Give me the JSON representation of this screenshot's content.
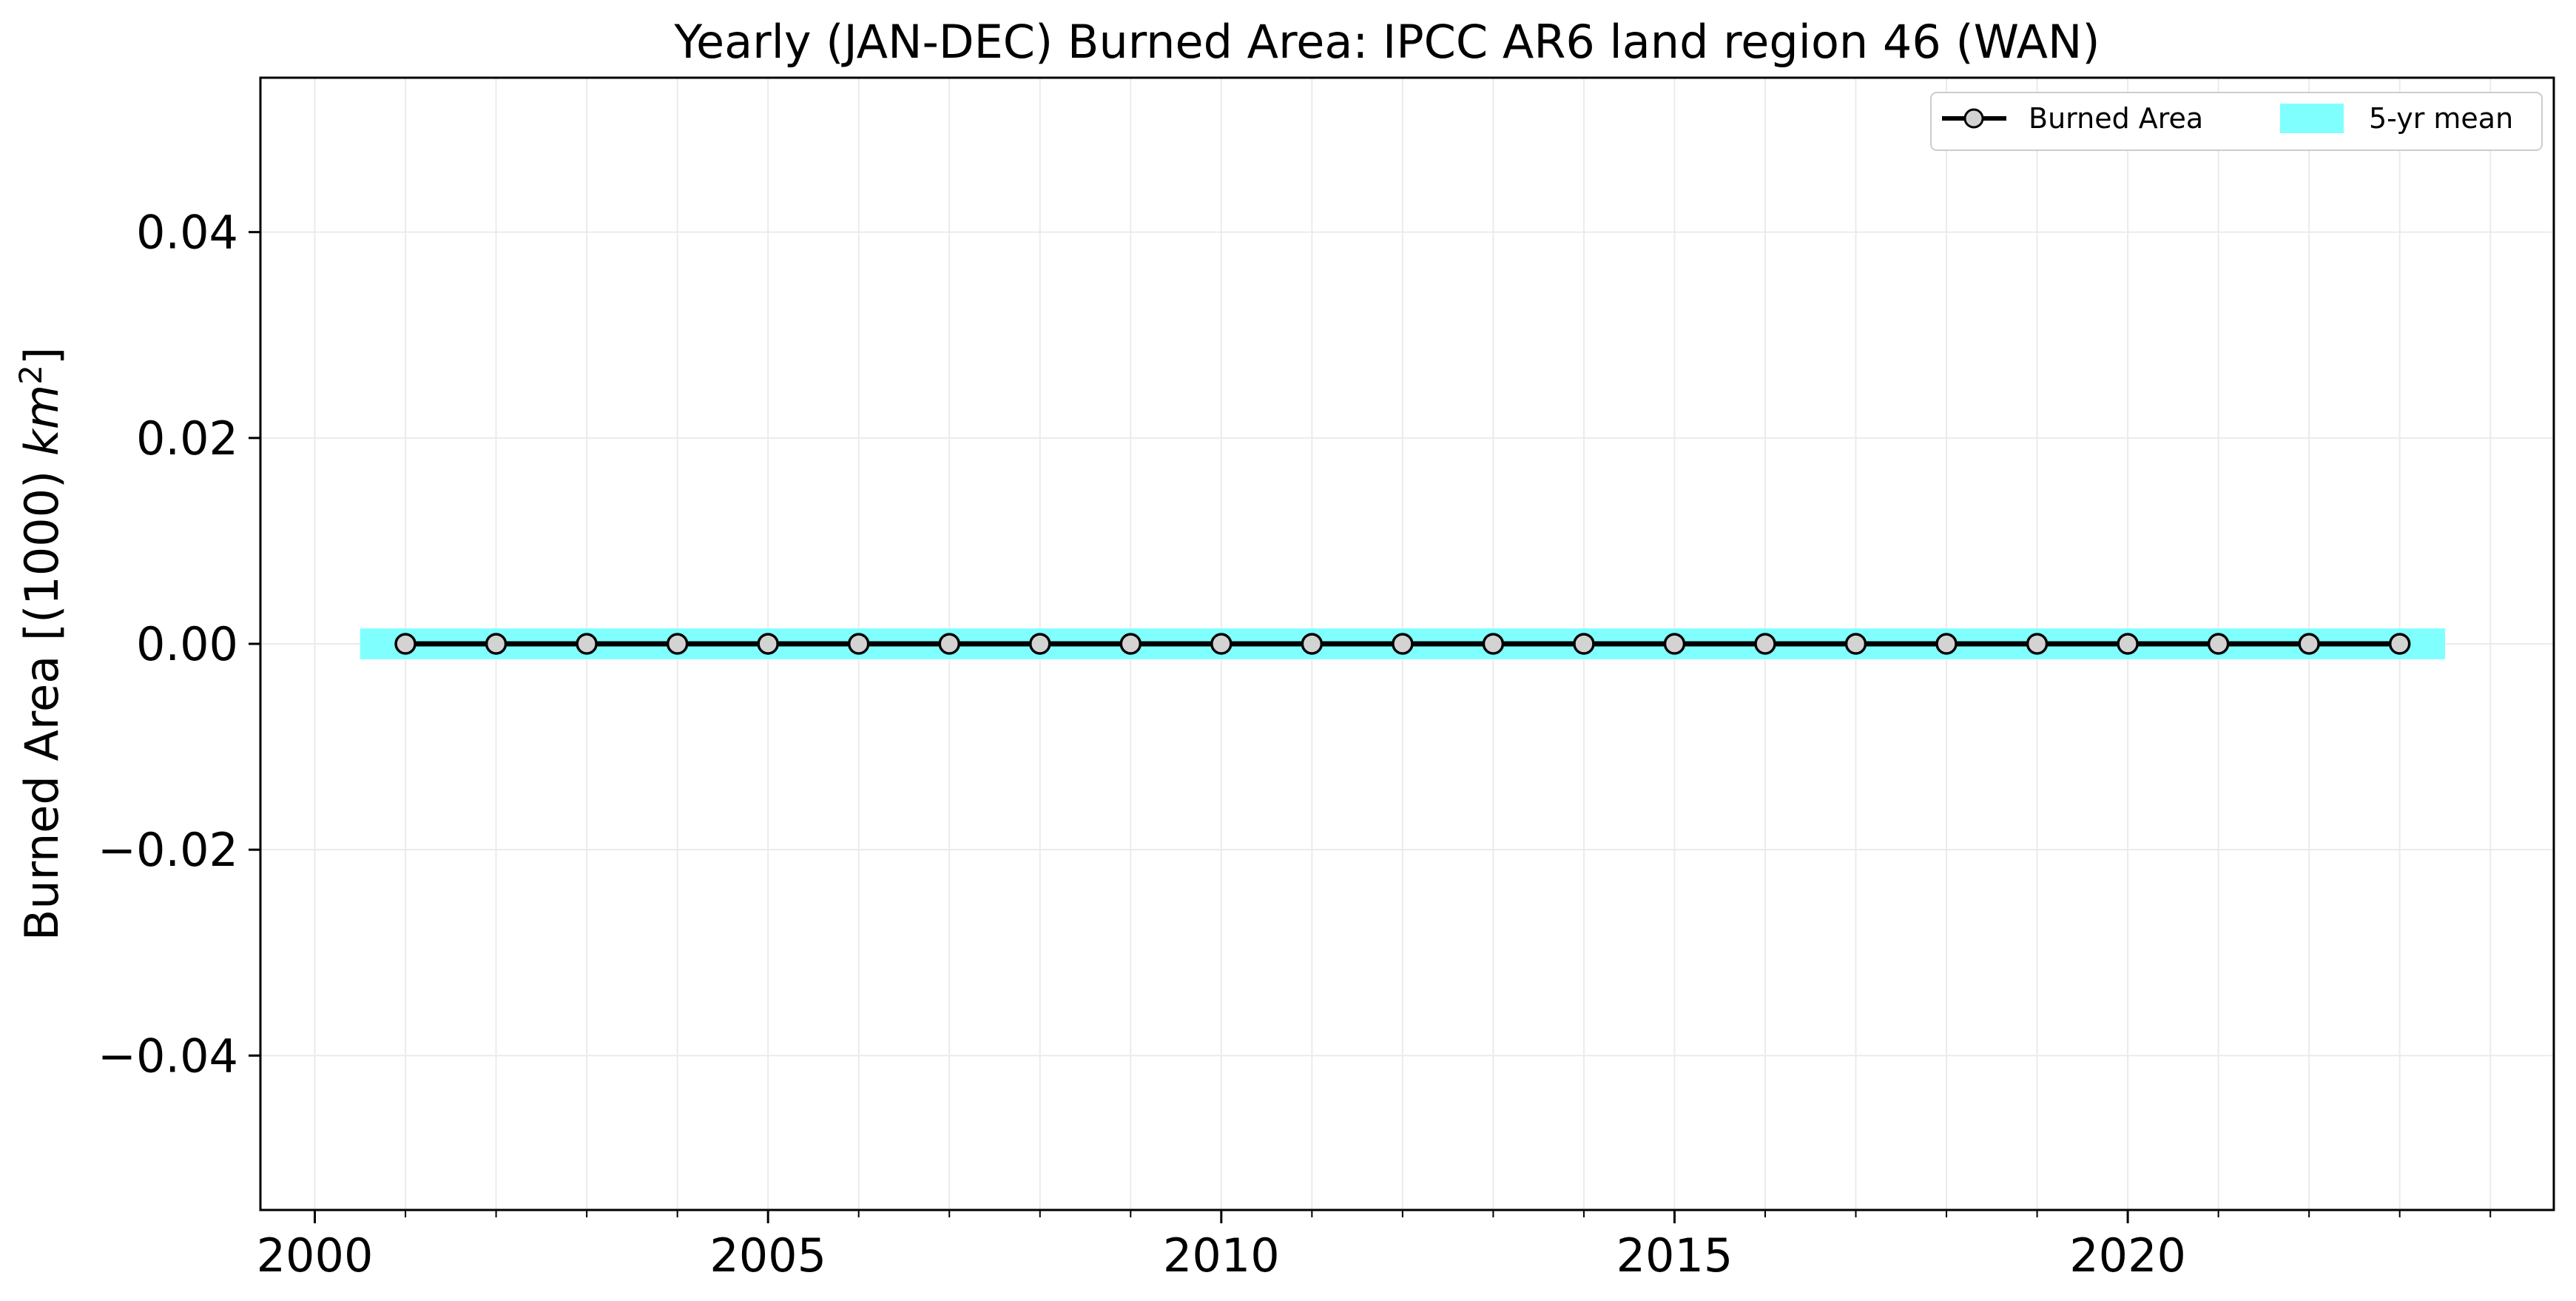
{
  "chart_data": {
    "type": "line",
    "title": "Yearly (JAN-DEC) Burned Area: IPCC AR6 land region 46 (WAN)",
    "xlabel": "",
    "ylabel": "Burned Area [(1000) km²]",
    "ylabel_main": "Burned Area [(1000) ",
    "ylabel_unit": "km",
    "ylabel_exp": "2",
    "ylabel_end": "]",
    "xlim": [
      1999.4,
      2024.7
    ],
    "ylim": [
      -0.055,
      0.055
    ],
    "xticks": [
      2000,
      2005,
      2010,
      2015,
      2020
    ],
    "xtick_labels": [
      "2000",
      "2005",
      "2010",
      "2015",
      "2020"
    ],
    "yticks": [
      -0.04,
      -0.02,
      0.0,
      0.02,
      0.04
    ],
    "ytick_labels": [
      "−0.04",
      "−0.02",
      "0.00",
      "0.02",
      "0.04"
    ],
    "grid": true,
    "legend_position": "top-right",
    "series": [
      {
        "name": "Burned Area",
        "color": "#000000",
        "marker_fill": "#d3d3d3",
        "x": [
          2001,
          2002,
          2003,
          2004,
          2005,
          2006,
          2007,
          2008,
          2009,
          2010,
          2011,
          2012,
          2013,
          2014,
          2015,
          2016,
          2017,
          2018,
          2019,
          2020,
          2021,
          2022,
          2023
        ],
        "y": [
          0,
          0,
          0,
          0,
          0,
          0,
          0,
          0,
          0,
          0,
          0,
          0,
          0,
          0,
          0,
          0,
          0,
          0,
          0,
          0,
          0,
          0,
          0
        ]
      }
    ],
    "band": {
      "name": "5-yr mean",
      "color": "#80ffff",
      "x_range": [
        2000.5,
        2023.5
      ],
      "y_range": [
        -0.0015,
        0.0015
      ]
    }
  }
}
